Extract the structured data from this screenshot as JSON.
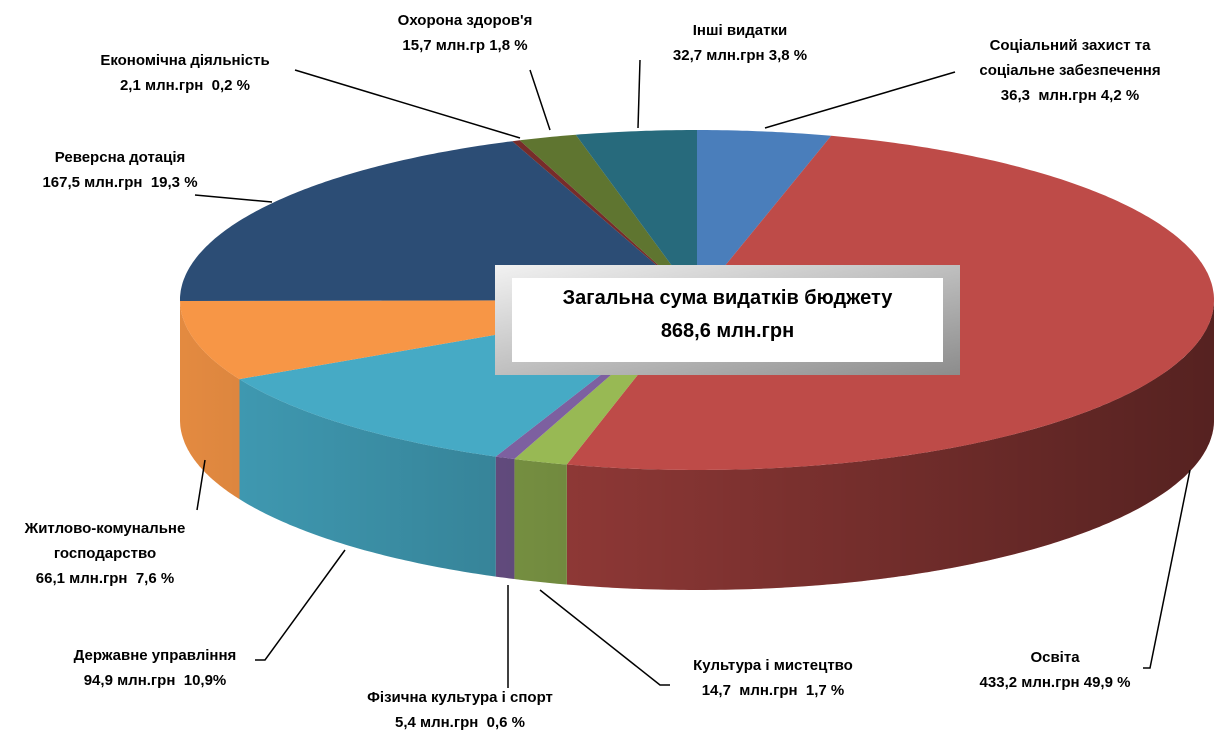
{
  "chart_data": {
    "type": "pie",
    "categories": [
      "Соціальний захист та соціальне забезпечення",
      "Освіта",
      "Культура і мистецтво",
      "Фізична культура і спорт",
      "Державне управління",
      "Житлово-комунальне господарство",
      "Реверсна дотація",
      "Економічна діяльність",
      "Охорона здоров'я",
      "Інші видатки"
    ],
    "values": [
      36.3,
      433.2,
      14.7,
      5.4,
      94.9,
      66.1,
      167.5,
      2.1,
      15.7,
      32.7
    ],
    "value_labels": [
      "36,3  млн.грн 4,2 %",
      "433,2 млн.грн 49,9 %",
      "14,7  млн.грн  1,7 %",
      "5,4 млн.грн  0,6 %",
      "94,9 млн.грн  10,9%",
      "66,1 млн.грн  7,6 %",
      "167,5 млн.грн  19,3 %",
      "2,1 млн.грн  0,2 %",
      "15,7 млн.гр 1,8 %",
      "32,7 млн.грн 3,8 %"
    ],
    "colors": [
      "#4a7ebb",
      "#be4b48",
      "#98b954",
      "#7d60a0",
      "#46aac5",
      "#f79646",
      "#2c4d75",
      "#772c2a",
      "#5f7530",
      "#276a7c"
    ],
    "annotation": [
      "Загальна сума видатків бюджету",
      "868,6 млн.грн"
    ]
  }
}
